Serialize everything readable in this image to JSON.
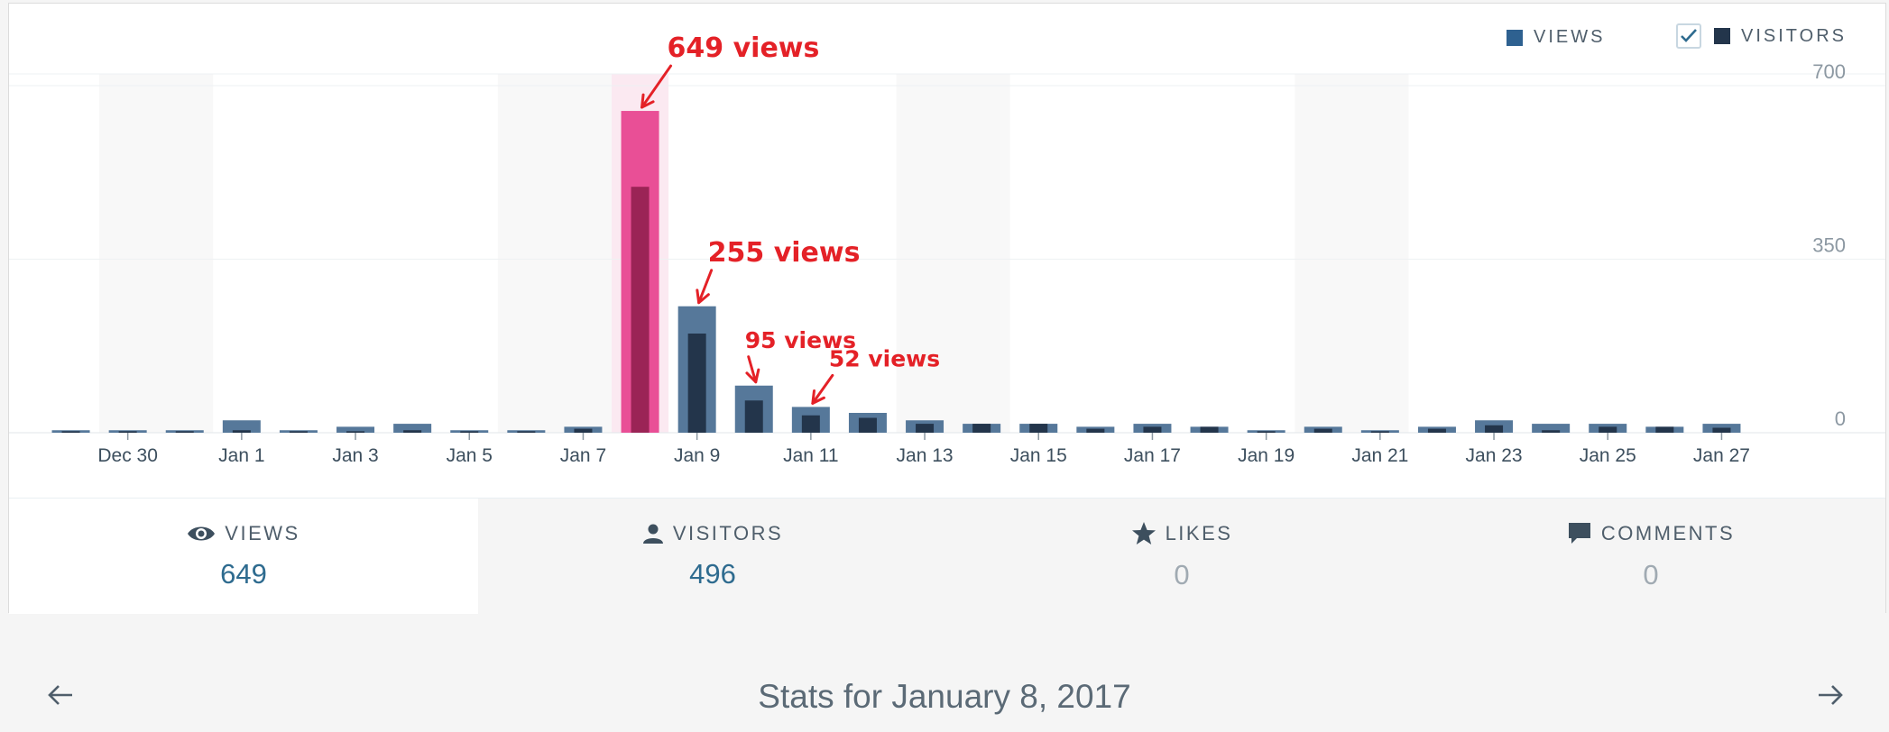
{
  "legend": {
    "views_label": "VIEWS",
    "visitors_label": "VISITORS",
    "visitors_checked": true,
    "views_color": "#2e6190",
    "visitors_color": "#23354b"
  },
  "chart_data": {
    "type": "bar",
    "x": [
      "Dec 29",
      "Dec 30",
      "Dec 31",
      "Jan 1",
      "Jan 2",
      "Jan 3",
      "Jan 4",
      "Jan 5",
      "Jan 6",
      "Jan 7",
      "Jan 8",
      "Jan 9",
      "Jan 10",
      "Jan 11",
      "Jan 12",
      "Jan 13",
      "Jan 14",
      "Jan 15",
      "Jan 16",
      "Jan 17",
      "Jan 18",
      "Jan 19",
      "Jan 20",
      "Jan 21",
      "Jan 22",
      "Jan 23",
      "Jan 24",
      "Jan 25",
      "Jan 26",
      "Jan 27"
    ],
    "tick_labels": [
      "Dec 30",
      "Jan 1",
      "Jan 3",
      "Jan 5",
      "Jan 7",
      "Jan 9",
      "Jan 11",
      "Jan 13",
      "Jan 15",
      "Jan 17",
      "Jan 19",
      "Jan 21",
      "Jan 23",
      "Jan 25",
      "Jan 27"
    ],
    "series": [
      {
        "name": "VIEWS",
        "color": "#56789a",
        "values": [
          5,
          5,
          5,
          25,
          5,
          12,
          18,
          5,
          5,
          12,
          649,
          255,
          95,
          52,
          40,
          25,
          18,
          18,
          12,
          18,
          12,
          5,
          12,
          5,
          12,
          25,
          18,
          18,
          12,
          18
        ]
      },
      {
        "name": "VISITORS",
        "color": "#23354b",
        "values": [
          3,
          3,
          3,
          5,
          3,
          3,
          5,
          3,
          3,
          8,
          496,
          200,
          65,
          35,
          30,
          18,
          18,
          18,
          8,
          12,
          12,
          3,
          8,
          3,
          8,
          15,
          5,
          12,
          12,
          10
        ]
      }
    ],
    "highlight_index": 10,
    "highlight_color": "#e94f96",
    "highlight_inner_color": "#9b2456",
    "weekend_bands": [
      [
        1,
        2
      ],
      [
        8,
        9
      ],
      [
        15,
        16
      ],
      [
        22,
        23
      ]
    ],
    "ylim": [
      0,
      700
    ],
    "yticks": [
      0,
      350,
      700
    ],
    "annotations": [
      {
        "index": 10,
        "text": "649 views"
      },
      {
        "index": 11,
        "text": "255 views"
      },
      {
        "index": 12,
        "text": "95 views"
      },
      {
        "index": 13,
        "text": "52 views"
      }
    ],
    "annotation_color": "#e42127"
  },
  "tabs": [
    {
      "icon": "eye-icon",
      "label": "VIEWS",
      "value": "649",
      "active": true
    },
    {
      "icon": "person-icon",
      "label": "VISITORS",
      "value": "496",
      "active": false
    },
    {
      "icon": "star-icon",
      "label": "LIKES",
      "value": "0",
      "active": false
    },
    {
      "icon": "comment-icon",
      "label": "COMMENTS",
      "value": "0",
      "active": false
    }
  ],
  "footer": {
    "title": "Stats for January 8, 2017",
    "prev_icon": "arrow-left-icon",
    "next_icon": "arrow-right-icon"
  }
}
